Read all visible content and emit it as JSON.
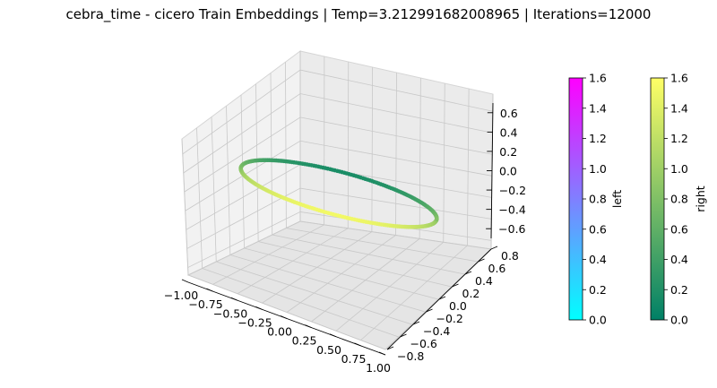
{
  "chart_data": {
    "type": "scatter",
    "projection": "3d",
    "title": "cebra_time - cicero Train Embeddings | Temp=3.212991682008965 | Iterations=12000",
    "shape": "closed ring (unit circle) in 3D embedding space",
    "axes": {
      "x": {
        "range": [
          -1.0,
          1.0
        ],
        "ticks": [
          "−1.00",
          "−0.75",
          "−0.50",
          "−0.25",
          "0.00",
          "0.25",
          "0.50",
          "0.75",
          "1.00"
        ]
      },
      "y": {
        "range": [
          -0.8,
          0.8
        ],
        "ticks": [
          "−0.8",
          "−0.6",
          "−0.4",
          "−0.2",
          "0.0",
          "0.2",
          "0.4",
          "0.6",
          "0.8"
        ]
      },
      "z": {
        "range": [
          -0.7,
          0.7
        ],
        "ticks": [
          "−0.6",
          "−0.4",
          "−0.2",
          "0.0",
          "0.2",
          "0.4",
          "0.6"
        ]
      }
    },
    "grid": true,
    "series": [
      {
        "name": "right",
        "colormap": "summer",
        "color_range": [
          0.0,
          1.6
        ],
        "color_low": "#008066",
        "color_high": "#ffff66"
      },
      {
        "name": "left",
        "colormap": "cool",
        "color_range": [
          0.0,
          1.6
        ],
        "color_low": "#00ffff",
        "color_high": "#ff00ff"
      }
    ],
    "colorbars": [
      {
        "label": "left",
        "cmap": "cool",
        "ticks": [
          "0.0",
          "0.2",
          "0.4",
          "0.6",
          "0.8",
          "1.0",
          "1.2",
          "1.4",
          "1.6"
        ]
      },
      {
        "label": "right",
        "cmap": "summer",
        "ticks": [
          "0.0",
          "0.2",
          "0.4",
          "0.6",
          "0.8",
          "1.0",
          "1.2",
          "1.4",
          "1.6"
        ]
      }
    ]
  }
}
